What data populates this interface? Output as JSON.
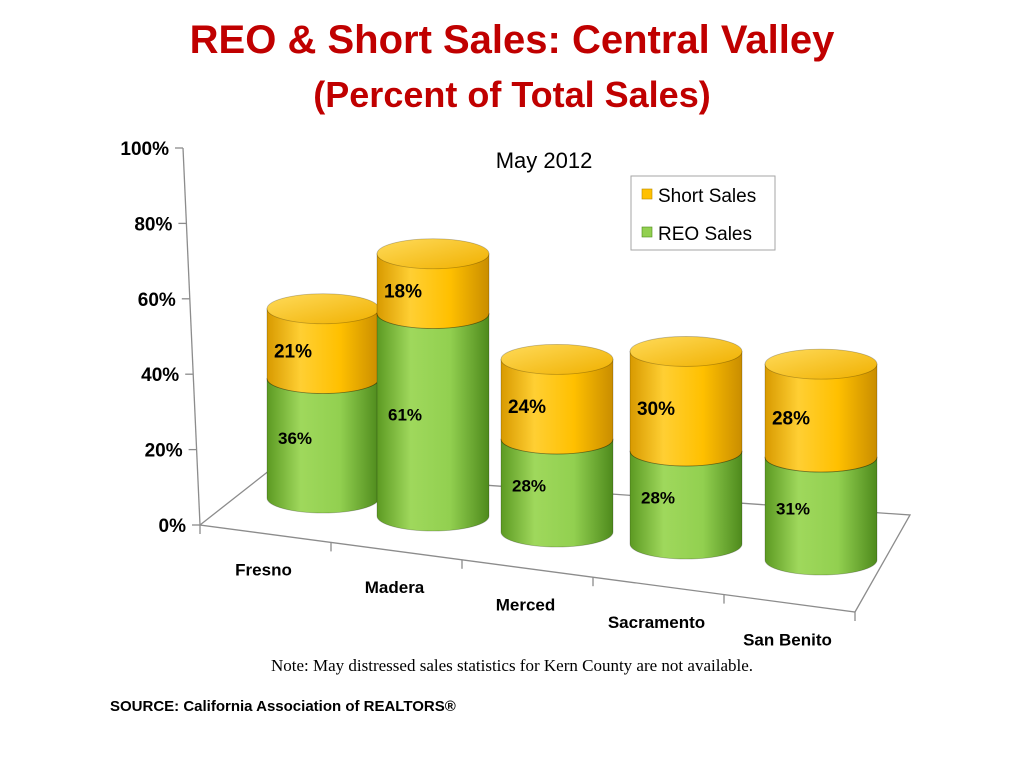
{
  "title": "REO & Short Sales: Central Valley",
  "subtitle": "(Percent of Total Sales)",
  "note": "Note: May distressed sales statistics for Kern County are not available.",
  "source": "SOURCE: California Association of REALTORS®",
  "colors": {
    "title": "#c00000",
    "short_sales": "#ffc000",
    "reo_sales": "#92d050"
  },
  "chart_data": {
    "type": "bar",
    "stacked": true,
    "three_d": true,
    "chart_title": "May 2012",
    "categories": [
      "Fresno",
      "Madera",
      "Merced",
      "Sacramento",
      "San Benito"
    ],
    "series": [
      {
        "name": "REO Sales",
        "values": [
          36,
          61,
          28,
          28,
          31
        ],
        "labels": [
          "36%",
          "61%",
          "28%",
          "28%",
          "31%"
        ]
      },
      {
        "name": "Short Sales",
        "values": [
          21,
          18,
          24,
          30,
          28
        ],
        "labels": [
          "21%",
          "18%",
          "24%",
          "30%",
          "28%"
        ]
      }
    ],
    "ylim": [
      0,
      100
    ],
    "yticks": [
      "0%",
      "20%",
      "40%",
      "60%",
      "80%",
      "100%"
    ],
    "legend": [
      "Short Sales",
      "REO Sales"
    ],
    "legend_position": "top-right",
    "grid": false
  }
}
